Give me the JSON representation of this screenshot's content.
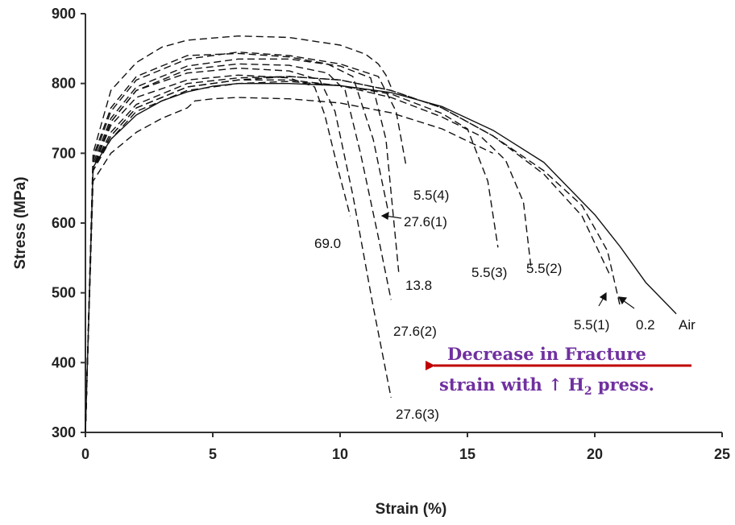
{
  "chart_data": {
    "type": "line",
    "xlabel": "Strain (%)",
    "ylabel": "Stress (MPa)",
    "xlim": [
      0,
      25
    ],
    "ylim": [
      300,
      900
    ],
    "xticks": [
      "0",
      "5",
      "10",
      "15",
      "20",
      "25"
    ],
    "yticks": [
      "300",
      "400",
      "500",
      "600",
      "700",
      "800",
      "900"
    ],
    "grid": false,
    "legend": "none",
    "series": [
      {
        "name": "Air",
        "style": "solid",
        "x": [
          0,
          0.3,
          1,
          2,
          3,
          4,
          5,
          6,
          8,
          10,
          12,
          14,
          16,
          18,
          20,
          21,
          22,
          23.2
        ],
        "y": [
          300,
          680,
          720,
          755,
          775,
          788,
          796,
          800,
          800,
          797,
          787,
          767,
          733,
          687,
          612,
          566,
          515,
          470
        ]
      },
      {
        "name": "0.2",
        "style": "dashed",
        "x": [
          0,
          0.3,
          1,
          2,
          4,
          6,
          8,
          10,
          12,
          14,
          16,
          18,
          19.5,
          20.5,
          21
        ],
        "y": [
          300,
          680,
          725,
          765,
          795,
          805,
          810,
          805,
          790,
          765,
          725,
          675,
          625,
          560,
          480
        ]
      },
      {
        "name": "5.5(1)",
        "style": "dashed",
        "x": [
          0,
          0.3,
          1,
          2,
          4,
          6,
          8,
          10,
          12,
          14,
          16,
          18,
          19.5,
          20.6
        ],
        "y": [
          300,
          680,
          730,
          770,
          800,
          808,
          810,
          805,
          790,
          765,
          725,
          670,
          610,
          525
        ]
      },
      {
        "name": "5.5(2)",
        "style": "dashed",
        "x": [
          0,
          0.3,
          1,
          2,
          4,
          6,
          8,
          10,
          12,
          14,
          15.5,
          16.5,
          17.2,
          17.5
        ],
        "y": [
          300,
          675,
          725,
          765,
          795,
          805,
          805,
          797,
          780,
          752,
          725,
          690,
          630,
          535
        ]
      },
      {
        "name": "5.5(3)",
        "style": "dashed",
        "x": [
          0,
          0.3,
          1,
          2,
          4,
          6,
          8,
          10,
          12,
          14,
          15,
          15.8,
          16.2
        ],
        "y": [
          300,
          675,
          720,
          760,
          790,
          800,
          803,
          797,
          785,
          757,
          735,
          660,
          565
        ]
      },
      {
        "name": "5.5(4)",
        "style": "dashed",
        "x": [
          0,
          0.3,
          1,
          2,
          4,
          6,
          8,
          10,
          11.5,
          12.2,
          12.6
        ],
        "y": [
          300,
          690,
          760,
          805,
          835,
          845,
          840,
          828,
          810,
          760,
          680
        ]
      },
      {
        "name": "27.6(1)",
        "style": "dashed",
        "x": [
          0,
          0.3,
          1,
          2,
          4,
          6,
          8,
          9.5,
          10.5,
          11.3,
          11.9
        ],
        "y": [
          300,
          695,
          765,
          810,
          840,
          843,
          838,
          828,
          810,
          720,
          615
        ]
      },
      {
        "name": "13.8",
        "style": "dashed",
        "x": [
          0,
          0.3,
          1,
          2,
          4,
          6,
          8,
          10,
          11.2,
          11.8,
          12.3
        ],
        "y": [
          300,
          685,
          750,
          795,
          825,
          835,
          835,
          825,
          808,
          720,
          530
        ]
      },
      {
        "name": "27.6(2)",
        "style": "dashed",
        "x": [
          0,
          0.3,
          1,
          2,
          4,
          6,
          8,
          9.5,
          10.2,
          10.8,
          11.5,
          12.0
        ],
        "y": [
          300,
          680,
          745,
          790,
          820,
          828,
          826,
          815,
          790,
          700,
          580,
          490
        ]
      },
      {
        "name": "69.0",
        "style": "dashed",
        "x": [
          0,
          0.3,
          1,
          2,
          4,
          6,
          8,
          9.0,
          9.4,
          9.9,
          10.4
        ],
        "y": [
          300,
          680,
          740,
          780,
          805,
          812,
          808,
          795,
          755,
          680,
          610
        ]
      },
      {
        "name": "27.6(3)",
        "style": "dashed",
        "x": [
          0,
          0.3,
          1,
          2,
          4,
          6,
          8,
          9.2,
          9.8,
          10.5,
          11.3,
          12.0
        ],
        "y": [
          300,
          680,
          745,
          790,
          815,
          822,
          818,
          805,
          760,
          640,
          480,
          350
        ]
      },
      {
        "name": "",
        "style": "dashed",
        "x": [
          0,
          0.3,
          1,
          2,
          3,
          4,
          6,
          8,
          10,
          11.0,
          11.5,
          11.8,
          12.0
        ],
        "y": [
          300,
          700,
          790,
          830,
          852,
          862,
          868,
          866,
          855,
          842,
          828,
          812,
          795
        ]
      },
      {
        "name": "",
        "style": "dashed",
        "x": [
          0,
          0.3,
          1,
          2,
          3,
          4,
          4.3,
          5,
          6,
          8,
          10,
          12,
          14,
          16
        ],
        "y": [
          300,
          660,
          700,
          730,
          750,
          765,
          775,
          778,
          780,
          778,
          772,
          758,
          735,
          700
        ]
      }
    ],
    "annotations": [
      {
        "text": "Decrease in Fracture",
        "color": "#7030a0"
      },
      {
        "text": "strain with ↑ H",
        "subscript": "2",
        "suffix": " press.",
        "color": "#7030a0"
      }
    ],
    "arrow_color": "#c00000"
  }
}
